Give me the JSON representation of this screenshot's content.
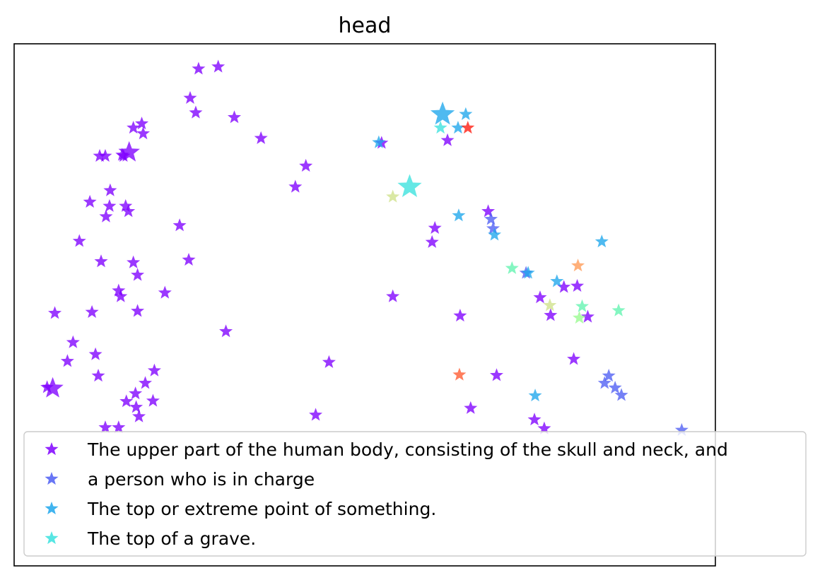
{
  "chart_data": {
    "type": "scatter",
    "title": "head",
    "xlabel": "",
    "ylabel": "",
    "xlim": [
      0,
      100
    ],
    "ylim": [
      0,
      100
    ],
    "grid": false,
    "axis_ticks": false,
    "marker": "star",
    "legend_position": "bottom-right",
    "colors": {
      "violet": "#7f00ff",
      "blue": "#4e5ef3",
      "sky": "#1ea7ec",
      "cyan": "#3ae2de",
      "aqua": "#62f4b0",
      "mint": "#98fb8e",
      "khaki": "#cfe28a",
      "orange": "#ff9a55",
      "tomato": "#ff5a30",
      "red": "#ff1a0d"
    },
    "legend": [
      {
        "label": "The upper part of the human body, consisting of the skull and neck, and",
        "color": "violet"
      },
      {
        "label": "a person who is in charge",
        "color": "blue"
      },
      {
        "label": "The top or extreme point of something.",
        "color": "sky"
      },
      {
        "label": "The top of a grave.",
        "color": "cyan"
      }
    ],
    "points": [
      {
        "x": 26.3,
        "y": 95.2,
        "color": "violet"
      },
      {
        "x": 29.1,
        "y": 95.6,
        "color": "violet"
      },
      {
        "x": 25.1,
        "y": 89.6,
        "color": "violet"
      },
      {
        "x": 25.9,
        "y": 86.8,
        "color": "violet"
      },
      {
        "x": 31.4,
        "y": 85.9,
        "color": "violet"
      },
      {
        "x": 17.0,
        "y": 83.9,
        "color": "violet"
      },
      {
        "x": 18.2,
        "y": 84.7,
        "color": "violet"
      },
      {
        "x": 18.4,
        "y": 82.8,
        "color": "violet"
      },
      {
        "x": 35.2,
        "y": 81.9,
        "color": "violet"
      },
      {
        "x": 12.2,
        "y": 78.5,
        "color": "violet"
      },
      {
        "x": 13.0,
        "y": 78.5,
        "color": "violet"
      },
      {
        "x": 15.4,
        "y": 78.7,
        "color": "violet"
      },
      {
        "x": 16.4,
        "y": 79.2,
        "color": "violet",
        "size": 1.6
      },
      {
        "x": 15.6,
        "y": 78.5,
        "color": "violet"
      },
      {
        "x": 41.6,
        "y": 76.6,
        "color": "violet"
      },
      {
        "x": 40.1,
        "y": 72.6,
        "color": "violet"
      },
      {
        "x": 13.7,
        "y": 71.9,
        "color": "violet"
      },
      {
        "x": 10.8,
        "y": 69.7,
        "color": "violet"
      },
      {
        "x": 13.6,
        "y": 68.9,
        "color": "violet"
      },
      {
        "x": 15.9,
        "y": 68.9,
        "color": "violet"
      },
      {
        "x": 16.3,
        "y": 67.9,
        "color": "violet"
      },
      {
        "x": 13.1,
        "y": 66.9,
        "color": "violet"
      },
      {
        "x": 23.6,
        "y": 65.2,
        "color": "violet"
      },
      {
        "x": 9.3,
        "y": 62.2,
        "color": "violet"
      },
      {
        "x": 12.4,
        "y": 58.3,
        "color": "violet"
      },
      {
        "x": 17.0,
        "y": 58.1,
        "color": "violet"
      },
      {
        "x": 24.9,
        "y": 58.6,
        "color": "violet"
      },
      {
        "x": 17.6,
        "y": 55.7,
        "color": "violet"
      },
      {
        "x": 14.9,
        "y": 52.7,
        "color": "violet"
      },
      {
        "x": 15.2,
        "y": 51.6,
        "color": "violet"
      },
      {
        "x": 21.5,
        "y": 52.3,
        "color": "violet"
      },
      {
        "x": 5.8,
        "y": 48.4,
        "color": "violet"
      },
      {
        "x": 11.1,
        "y": 48.6,
        "color": "violet"
      },
      {
        "x": 17.6,
        "y": 48.8,
        "color": "violet"
      },
      {
        "x": 30.2,
        "y": 44.9,
        "color": "violet"
      },
      {
        "x": 8.4,
        "y": 42.8,
        "color": "violet"
      },
      {
        "x": 11.6,
        "y": 40.5,
        "color": "violet"
      },
      {
        "x": 7.6,
        "y": 39.2,
        "color": "violet"
      },
      {
        "x": 20.0,
        "y": 37.4,
        "color": "violet"
      },
      {
        "x": 12.0,
        "y": 36.4,
        "color": "violet"
      },
      {
        "x": 44.9,
        "y": 39.0,
        "color": "violet"
      },
      {
        "x": 18.7,
        "y": 35.0,
        "color": "violet"
      },
      {
        "x": 5.5,
        "y": 34.0,
        "color": "violet",
        "size": 1.6
      },
      {
        "x": 4.7,
        "y": 34.2,
        "color": "violet"
      },
      {
        "x": 17.3,
        "y": 33.0,
        "color": "violet"
      },
      {
        "x": 16.0,
        "y": 31.5,
        "color": "violet"
      },
      {
        "x": 19.8,
        "y": 31.6,
        "color": "violet"
      },
      {
        "x": 17.4,
        "y": 30.4,
        "color": "violet"
      },
      {
        "x": 17.8,
        "y": 28.6,
        "color": "violet"
      },
      {
        "x": 43.0,
        "y": 28.9,
        "color": "violet"
      },
      {
        "x": 13.0,
        "y": 26.5,
        "color": "violet"
      },
      {
        "x": 14.9,
        "y": 26.5,
        "color": "violet"
      },
      {
        "x": 52.4,
        "y": 81.0,
        "color": "violet"
      },
      {
        "x": 61.8,
        "y": 81.5,
        "color": "violet"
      },
      {
        "x": 67.6,
        "y": 67.9,
        "color": "violet"
      },
      {
        "x": 60.0,
        "y": 64.7,
        "color": "violet"
      },
      {
        "x": 59.6,
        "y": 62.0,
        "color": "violet"
      },
      {
        "x": 54.0,
        "y": 51.6,
        "color": "violet"
      },
      {
        "x": 63.6,
        "y": 47.9,
        "color": "violet"
      },
      {
        "x": 75.0,
        "y": 51.4,
        "color": "violet"
      },
      {
        "x": 76.5,
        "y": 48.0,
        "color": "violet"
      },
      {
        "x": 78.4,
        "y": 53.4,
        "color": "violet"
      },
      {
        "x": 80.3,
        "y": 53.6,
        "color": "violet"
      },
      {
        "x": 81.8,
        "y": 47.7,
        "color": "violet"
      },
      {
        "x": 79.8,
        "y": 39.6,
        "color": "violet"
      },
      {
        "x": 68.8,
        "y": 36.5,
        "color": "violet"
      },
      {
        "x": 65.1,
        "y": 30.2,
        "color": "violet"
      },
      {
        "x": 74.2,
        "y": 28.0,
        "color": "violet"
      },
      {
        "x": 75.6,
        "y": 26.3,
        "color": "violet"
      },
      {
        "x": 68.0,
        "y": 66.4,
        "color": "blue"
      },
      {
        "x": 68.3,
        "y": 64.6,
        "color": "blue"
      },
      {
        "x": 73.0,
        "y": 56.1,
        "color": "blue"
      },
      {
        "x": 84.8,
        "y": 36.4,
        "color": "blue"
      },
      {
        "x": 84.2,
        "y": 35.0,
        "color": "blue"
      },
      {
        "x": 85.7,
        "y": 34.1,
        "color": "blue"
      },
      {
        "x": 86.6,
        "y": 32.7,
        "color": "blue"
      },
      {
        "x": 95.2,
        "y": 26.0,
        "color": "blue"
      },
      {
        "x": 61.1,
        "y": 86.5,
        "color": "sky",
        "size": 1.8
      },
      {
        "x": 64.4,
        "y": 86.5,
        "color": "sky"
      },
      {
        "x": 63.3,
        "y": 83.9,
        "color": "sky"
      },
      {
        "x": 52.0,
        "y": 81.1,
        "color": "sky"
      },
      {
        "x": 63.4,
        "y": 67.1,
        "color": "sky"
      },
      {
        "x": 68.5,
        "y": 63.4,
        "color": "sky"
      },
      {
        "x": 83.8,
        "y": 62.1,
        "color": "sky"
      },
      {
        "x": 73.3,
        "y": 56.1,
        "color": "sky"
      },
      {
        "x": 77.4,
        "y": 54.5,
        "color": "sky"
      },
      {
        "x": 74.3,
        "y": 32.6,
        "color": "sky"
      },
      {
        "x": 60.8,
        "y": 83.9,
        "color": "cyan"
      },
      {
        "x": 56.4,
        "y": 72.6,
        "color": "cyan",
        "size": 1.8
      },
      {
        "x": 71.0,
        "y": 57.0,
        "color": "aqua"
      },
      {
        "x": 81.0,
        "y": 49.7,
        "color": "aqua"
      },
      {
        "x": 86.2,
        "y": 48.9,
        "color": "aqua"
      },
      {
        "x": 80.6,
        "y": 47.5,
        "color": "mint"
      },
      {
        "x": 54.0,
        "y": 70.7,
        "color": "khaki"
      },
      {
        "x": 76.4,
        "y": 49.9,
        "color": "khaki"
      },
      {
        "x": 80.4,
        "y": 57.5,
        "color": "orange"
      },
      {
        "x": 63.5,
        "y": 36.6,
        "color": "tomato"
      },
      {
        "x": 64.7,
        "y": 83.9,
        "color": "red"
      }
    ]
  }
}
